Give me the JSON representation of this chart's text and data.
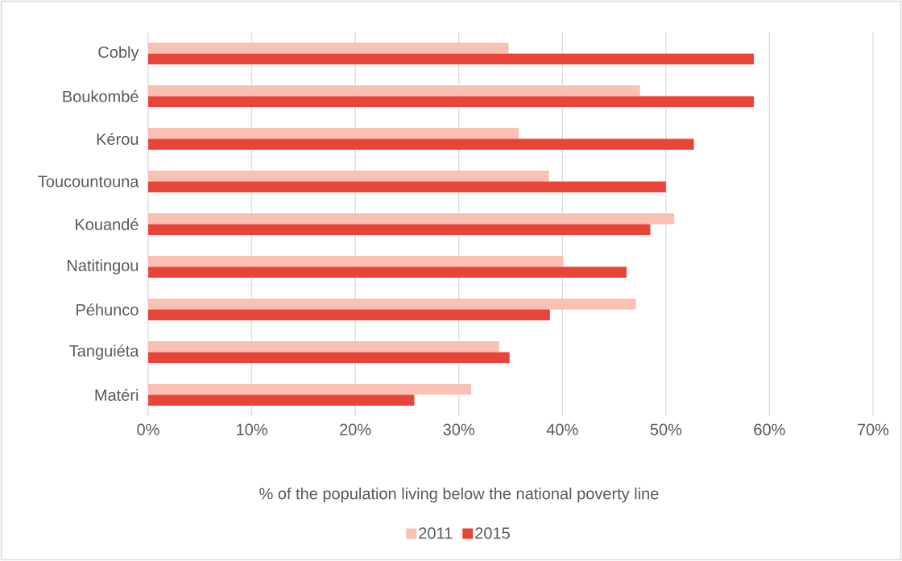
{
  "chart_data": {
    "type": "bar",
    "orientation": "horizontal",
    "xlabel": "% of the population living below the national poverty line",
    "categories": [
      "Cobly",
      "Boukombé",
      "Kérou",
      "Toucountouna",
      "Kouandé",
      "Natitingou",
      "Péhunco",
      "Tanguiéta",
      "Matéri"
    ],
    "series": [
      {
        "name": "2011",
        "color": "#f8c1b4",
        "values": [
          34.8,
          47.5,
          35.8,
          38.7,
          50.8,
          40.1,
          47.1,
          33.9,
          31.2
        ]
      },
      {
        "name": "2015",
        "color": "#e8443a",
        "values": [
          58.5,
          58.5,
          52.7,
          50.0,
          48.5,
          46.2,
          38.8,
          34.9,
          25.7
        ]
      }
    ],
    "xlim": [
      0,
      70
    ],
    "xticks": [
      {
        "value": 0,
        "label": "0%"
      },
      {
        "value": 10,
        "label": "10%"
      },
      {
        "value": 20,
        "label": "20%"
      },
      {
        "value": 30,
        "label": "30%"
      },
      {
        "value": 40,
        "label": "40%"
      },
      {
        "value": 50,
        "label": "50%"
      },
      {
        "value": 60,
        "label": "60%"
      },
      {
        "value": 70,
        "label": "70%"
      }
    ],
    "grid": "x",
    "legend": "bottom"
  }
}
